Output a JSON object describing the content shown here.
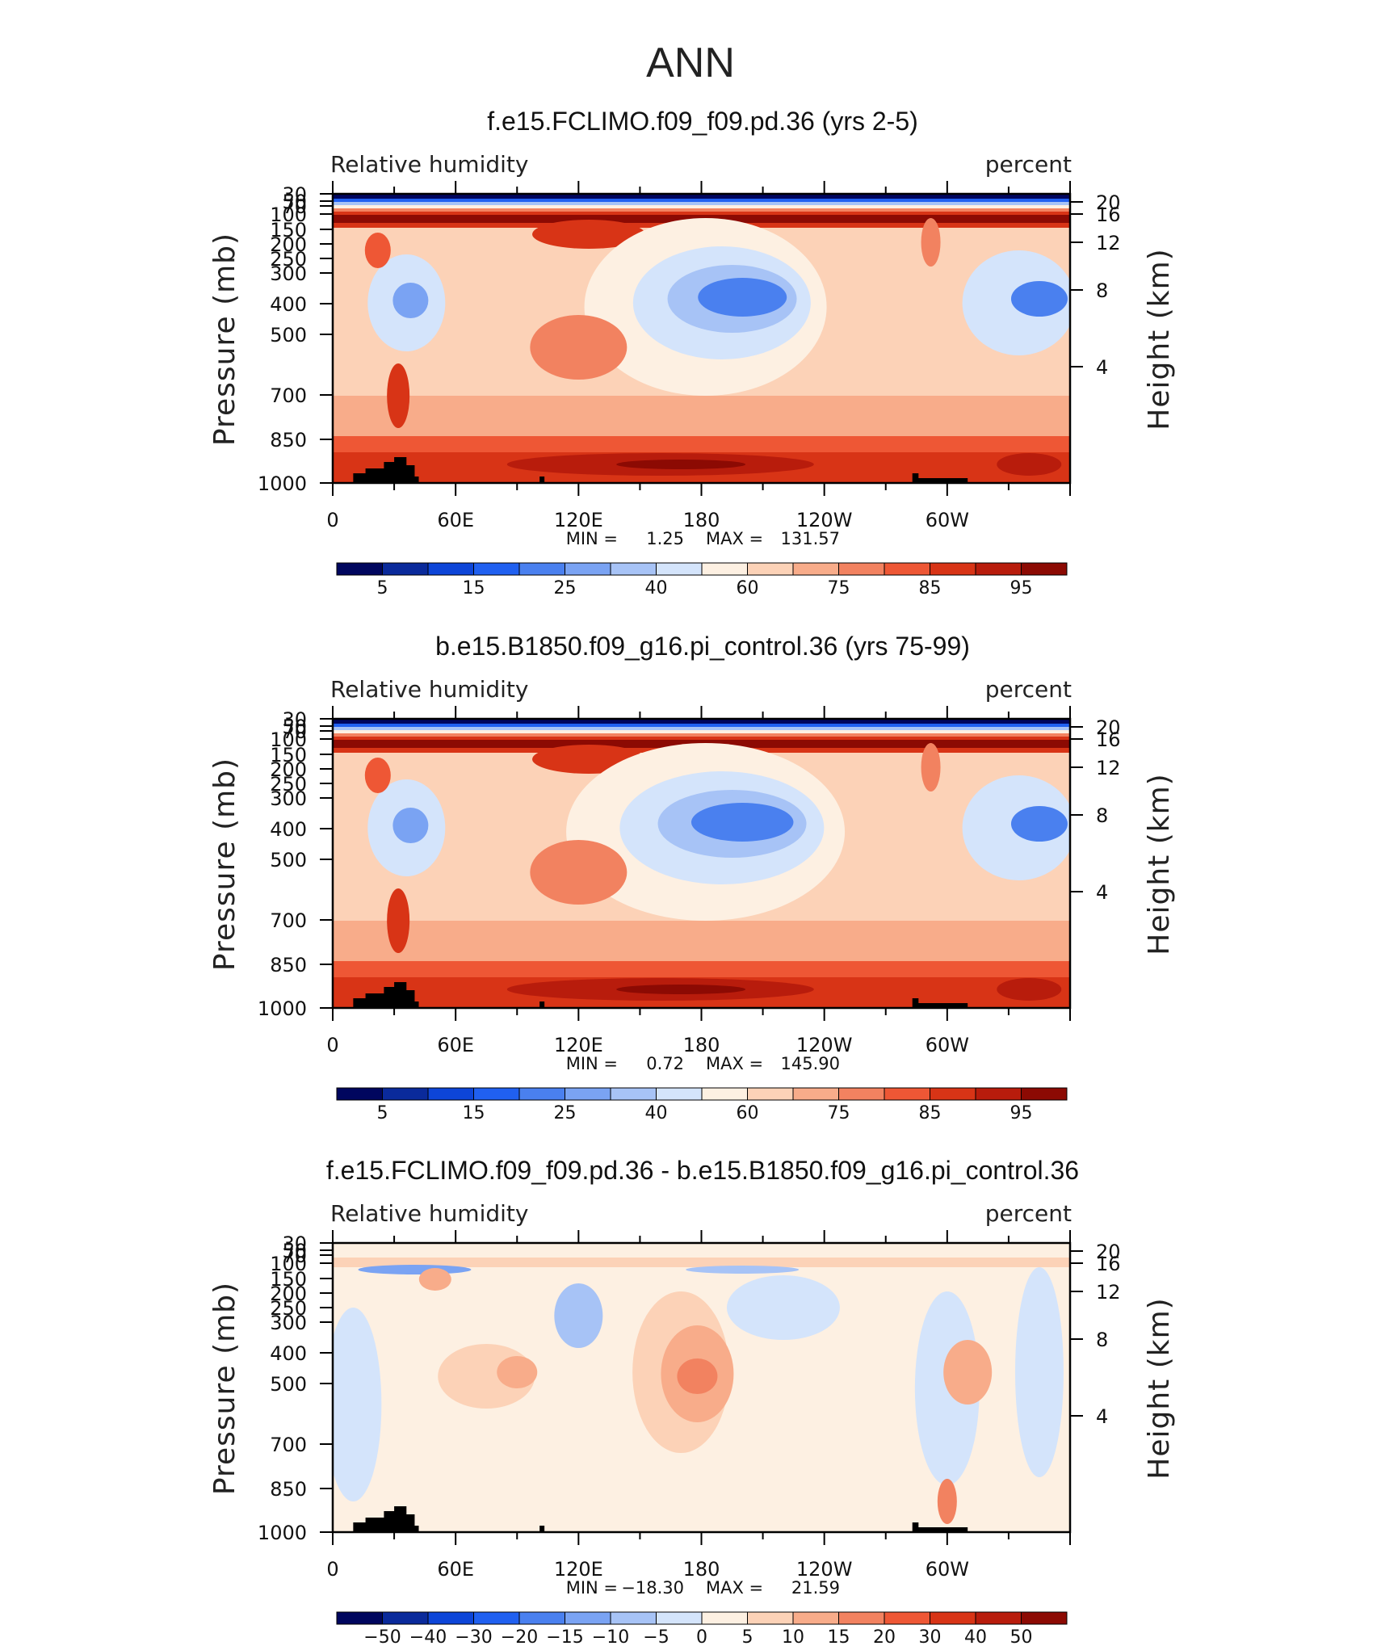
{
  "figure": {
    "title": "ANN"
  },
  "colors": {
    "levels_abs": [
      "#00065e",
      "#0a2a9b",
      "#0d45d8",
      "#2060f0",
      "#4a80ef",
      "#7aa3f3",
      "#a7c3f6",
      "#d4e4fb",
      "#fdf0e2",
      "#fcd2b7",
      "#f8ac8a",
      "#f28260",
      "#ee5735",
      "#d83416",
      "#b81c0c",
      "#8c0a03"
    ],
    "levels_diff": [
      "#00065e",
      "#0a2a9b",
      "#0d45d8",
      "#2060f0",
      "#4a80ef",
      "#7aa3f3",
      "#a7c3f6",
      "#d4e4fb",
      "#fdf0e2",
      "#fcd2b7",
      "#f8ac8a",
      "#f28260",
      "#ee5735",
      "#d83416",
      "#b81c0c",
      "#8c0a03"
    ],
    "topography": "#000000"
  },
  "chart_data": [
    {
      "type": "heatmap",
      "title": "f.e15.FCLIMO.f09_f09.pd.36 (yrs 2-5)",
      "left_label": "Relative humidity",
      "right_label": "percent",
      "ylabel": "Pressure (mb)",
      "ylabel_right": "Height (km)",
      "x_ticks": [
        "0",
        "60E",
        "120E",
        "180",
        "120W",
        "60W"
      ],
      "y_ticks": [
        "30",
        "50",
        "70",
        "100",
        "150",
        "200",
        "250",
        "300",
        "400",
        "500",
        "700",
        "850",
        "1000"
      ],
      "y_ticks_right": [
        "20",
        "16",
        "12",
        "8",
        "4"
      ],
      "stats": {
        "min_label": "MIN =",
        "min": "1.25",
        "max_label": "MAX =",
        "max": "131.57"
      },
      "colorbar_labels": [
        "5",
        "15",
        "25",
        "40",
        "60",
        "75",
        "85",
        "95"
      ],
      "colorbar_levels": [
        5,
        10,
        15,
        20,
        25,
        30,
        40,
        50,
        60,
        65,
        70,
        75,
        80,
        85,
        90,
        95
      ],
      "xlim": [
        0,
        360
      ],
      "ylim": [
        1000,
        30
      ]
    },
    {
      "type": "heatmap",
      "title": "b.e15.B1850.f09_g16.pi_control.36 (yrs 75-99)",
      "left_label": "Relative humidity",
      "right_label": "percent",
      "ylabel": "Pressure (mb)",
      "ylabel_right": "Height (km)",
      "x_ticks": [
        "0",
        "60E",
        "120E",
        "180",
        "120W",
        "60W"
      ],
      "y_ticks": [
        "30",
        "50",
        "70",
        "100",
        "150",
        "200",
        "250",
        "300",
        "400",
        "500",
        "700",
        "850",
        "1000"
      ],
      "y_ticks_right": [
        "20",
        "16",
        "12",
        "8",
        "4"
      ],
      "stats": {
        "min_label": "MIN =",
        "min": "0.72",
        "max_label": "MAX =",
        "max": "145.90"
      },
      "colorbar_labels": [
        "5",
        "15",
        "25",
        "40",
        "60",
        "75",
        "85",
        "95"
      ],
      "colorbar_levels": [
        5,
        10,
        15,
        20,
        25,
        30,
        40,
        50,
        60,
        65,
        70,
        75,
        80,
        85,
        90,
        95
      ],
      "xlim": [
        0,
        360
      ],
      "ylim": [
        1000,
        30
      ]
    },
    {
      "type": "heatmap",
      "title": "f.e15.FCLIMO.f09_f09.pd.36 - b.e15.B1850.f09_g16.pi_control.36",
      "left_label": "Relative humidity",
      "right_label": "percent",
      "ylabel": "Pressure (mb)",
      "ylabel_right": "Height (km)",
      "x_ticks": [
        "0",
        "60E",
        "120E",
        "180",
        "120W",
        "60W"
      ],
      "y_ticks": [
        "30",
        "50",
        "70",
        "100",
        "150",
        "200",
        "250",
        "300",
        "400",
        "500",
        "700",
        "850",
        "1000"
      ],
      "y_ticks_right": [
        "20",
        "16",
        "12",
        "8",
        "4"
      ],
      "stats": {
        "min_label": "MIN =",
        "min": "−18.30",
        "max_label": "MAX =",
        "max": "21.59"
      },
      "colorbar_labels": [
        "−50",
        "−40",
        "−30",
        "−20",
        "−15",
        "−10",
        "−5",
        "0",
        "5",
        "10",
        "15",
        "20",
        "30",
        "40",
        "50"
      ],
      "colorbar_levels": [
        -50,
        -40,
        -30,
        -20,
        -15,
        -10,
        -5,
        0,
        5,
        10,
        15,
        20,
        30,
        40,
        50
      ],
      "xlim": [
        0,
        360
      ],
      "ylim": [
        1000,
        30
      ]
    }
  ]
}
